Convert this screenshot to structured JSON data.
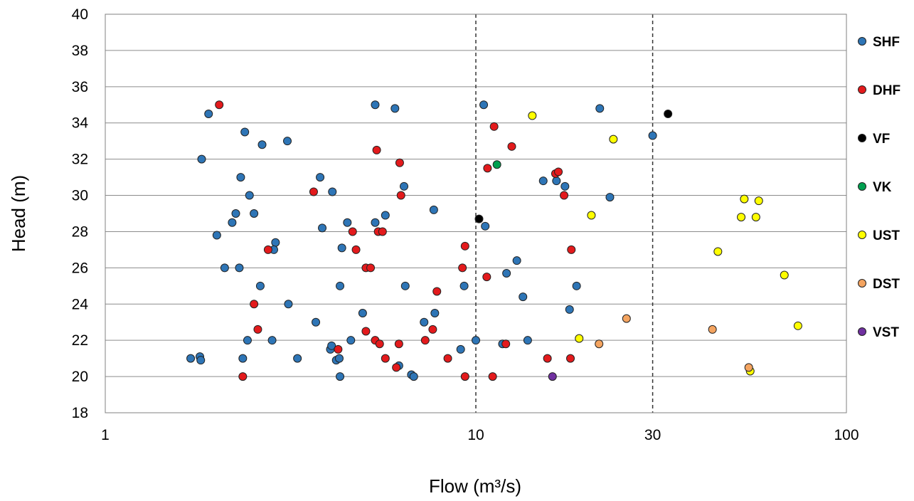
{
  "chart_data": {
    "type": "scatter",
    "xlabel": "Flow (m³/s)",
    "ylabel": "Head (m)",
    "xscale": "log",
    "xlim": [
      1,
      100
    ],
    "ylim": [
      18,
      40
    ],
    "xticks": [
      1,
      10,
      30,
      100
    ],
    "xtick_labels": [
      "1",
      "10",
      "30",
      "100"
    ],
    "yticks": [
      18,
      20,
      22,
      24,
      26,
      28,
      30,
      32,
      34,
      36,
      38,
      40
    ],
    "ytick_labels": [
      "18",
      "20",
      "22",
      "24",
      "26",
      "28",
      "30",
      "32",
      "34",
      "36",
      "38",
      "40"
    ],
    "grid": "horizontal",
    "reference_lines_x": [
      10,
      30
    ],
    "legend_position": "right",
    "series": [
      {
        "name": "SHF",
        "color": "#2e75b6",
        "points": [
          [
            1.7,
            21
          ],
          [
            1.8,
            21.1
          ],
          [
            1.81,
            20.9
          ],
          [
            1.82,
            32
          ],
          [
            1.9,
            34.5
          ],
          [
            2.0,
            27.8
          ],
          [
            2.1,
            26
          ],
          [
            2.2,
            28.5
          ],
          [
            2.25,
            29
          ],
          [
            2.3,
            26
          ],
          [
            2.32,
            31
          ],
          [
            2.35,
            21
          ],
          [
            2.38,
            33.5
          ],
          [
            2.42,
            22
          ],
          [
            2.45,
            30
          ],
          [
            2.52,
            29
          ],
          [
            2.62,
            25
          ],
          [
            2.65,
            32.8
          ],
          [
            2.82,
            22
          ],
          [
            2.88,
            27.4
          ],
          [
            2.85,
            27
          ],
          [
            3.1,
            33
          ],
          [
            3.12,
            24
          ],
          [
            3.3,
            21
          ],
          [
            3.7,
            23
          ],
          [
            3.8,
            31
          ],
          [
            3.85,
            28.2
          ],
          [
            4.05,
            21.5
          ],
          [
            4.08,
            21.7
          ],
          [
            4.1,
            30.2
          ],
          [
            4.2,
            20.9
          ],
          [
            4.28,
            21
          ],
          [
            4.3,
            20
          ],
          [
            4.3,
            25
          ],
          [
            4.35,
            27.1
          ],
          [
            4.5,
            28.5
          ],
          [
            4.6,
            22
          ],
          [
            4.95,
            23.5
          ],
          [
            5.35,
            28.5
          ],
          [
            5.35,
            35
          ],
          [
            5.7,
            28.9
          ],
          [
            6.05,
            34.8
          ],
          [
            6.2,
            20.6
          ],
          [
            6.4,
            30.5
          ],
          [
            6.45,
            25
          ],
          [
            6.7,
            20.1
          ],
          [
            6.8,
            20
          ],
          [
            7.25,
            23
          ],
          [
            7.7,
            29.2
          ],
          [
            7.75,
            23.5
          ],
          [
            9.1,
            21.5
          ],
          [
            9.3,
            25
          ],
          [
            10,
            22
          ],
          [
            10.5,
            35
          ],
          [
            10.6,
            28.3
          ],
          [
            11.8,
            21.8
          ],
          [
            12.1,
            25.7
          ],
          [
            12.9,
            26.4
          ],
          [
            13.4,
            24.4
          ],
          [
            13.8,
            22
          ],
          [
            15.2,
            30.8
          ],
          [
            16.5,
            30.8
          ],
          [
            17.4,
            30.5
          ],
          [
            17.9,
            23.7
          ],
          [
            18.7,
            25
          ],
          [
            21.6,
            34.8
          ],
          [
            23,
            29.9
          ],
          [
            30,
            33.3
          ]
        ]
      },
      {
        "name": "DHF",
        "color": "#e31a1c",
        "points": [
          [
            2.03,
            35
          ],
          [
            2.35,
            20
          ],
          [
            2.52,
            24
          ],
          [
            2.58,
            22.6
          ],
          [
            2.75,
            27
          ],
          [
            3.65,
            30.2
          ],
          [
            4.25,
            21.5
          ],
          [
            4.65,
            28
          ],
          [
            4.75,
            27
          ],
          [
            5.05,
            22.5
          ],
          [
            5.05,
            26
          ],
          [
            5.2,
            26
          ],
          [
            5.35,
            22
          ],
          [
            5.4,
            32.5
          ],
          [
            5.45,
            28
          ],
          [
            5.5,
            21.8
          ],
          [
            5.6,
            28
          ],
          [
            5.7,
            21
          ],
          [
            6.1,
            20.5
          ],
          [
            6.2,
            21.8
          ],
          [
            6.23,
            31.8
          ],
          [
            6.28,
            30
          ],
          [
            7.3,
            22
          ],
          [
            7.65,
            22.6
          ],
          [
            7.85,
            24.7
          ],
          [
            8.4,
            21
          ],
          [
            9.2,
            26
          ],
          [
            9.35,
            27.2
          ],
          [
            9.35,
            20
          ],
          [
            10.7,
            25.5
          ],
          [
            10.75,
            31.5
          ],
          [
            11.1,
            20
          ],
          [
            11.2,
            33.8
          ],
          [
            12.05,
            21.8
          ],
          [
            12.5,
            32.7
          ],
          [
            15.6,
            21
          ],
          [
            16.4,
            31.2
          ],
          [
            16.7,
            31.3
          ],
          [
            17.3,
            30
          ],
          [
            18,
            21
          ],
          [
            18.1,
            27
          ]
        ]
      },
      {
        "name": "VF",
        "color": "#000000",
        "points": [
          [
            10.2,
            28.7
          ],
          [
            33,
            34.5
          ]
        ]
      },
      {
        "name": "VK",
        "color": "#00a050",
        "points": [
          [
            11.4,
            31.7
          ]
        ]
      },
      {
        "name": "UST",
        "color": "#ffff00",
        "points": [
          [
            14.2,
            34.4
          ],
          [
            19,
            22.1
          ],
          [
            20.5,
            28.9
          ],
          [
            23.5,
            33.1
          ],
          [
            45,
            26.9
          ],
          [
            52,
            28.8
          ],
          [
            53,
            29.8
          ],
          [
            55,
            20.3
          ],
          [
            57,
            28.8
          ],
          [
            58,
            29.7
          ],
          [
            68,
            25.6
          ],
          [
            74,
            22.8
          ]
        ]
      },
      {
        "name": "DST",
        "color": "#f4a460",
        "points": [
          [
            21.5,
            21.8
          ],
          [
            25.5,
            23.2
          ],
          [
            43.5,
            22.6
          ],
          [
            54.5,
            20.5
          ]
        ]
      },
      {
        "name": "VST",
        "color": "#7030a0",
        "points": [
          [
            16.1,
            20
          ]
        ]
      }
    ]
  }
}
